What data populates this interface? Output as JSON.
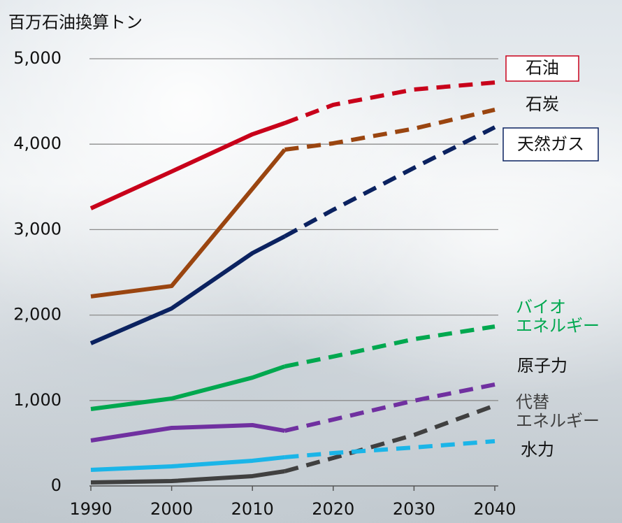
{
  "chart_data": {
    "type": "line",
    "y_label": "百万石油換算トン",
    "x": [
      1990,
      2000,
      2010,
      2014,
      2020,
      2030,
      2040
    ],
    "xlim": [
      1990,
      2040
    ],
    "xticks": [
      1990,
      2000,
      2010,
      2020,
      2030,
      2040
    ],
    "ylim": [
      0,
      5000
    ],
    "yticks": [
      0,
      {
        "value": 1000,
        "label": "1,000"
      },
      {
        "value": 2000,
        "label": "2,000"
      },
      {
        "value": 3000,
        "label": "3,000"
      },
      {
        "value": 4000,
        "label": "4,000"
      },
      {
        "value": 5000,
        "label": "5,000"
      }
    ],
    "grid": true,
    "solid_until": 2014,
    "series": [
      {
        "name": "石油",
        "color": "#c8001a",
        "boxed": true,
        "values": [
          3249,
          3680,
          4116,
          4247,
          4460,
          4640,
          4722
        ]
      },
      {
        "name": "石炭",
        "color": "#9a4510",
        "values": [
          2218,
          2340,
          3478,
          3936,
          4010,
          4182,
          4403
        ]
      },
      {
        "name": "天然ガス",
        "color": "#0b2260",
        "boxed": true,
        "values": [
          1669,
          2078,
          2725,
          2921,
          3232,
          3723,
          4198
        ]
      },
      {
        "name": [
          "バイオ",
          "エネルギー"
        ],
        "color": "#00a84f",
        "values": [
          900,
          1023,
          1268,
          1399,
          1514,
          1718,
          1866
        ]
      },
      {
        "name": "原子力",
        "color": "#7030a0",
        "values": [
          532,
          679,
          712,
          646,
          777,
          998,
          1187
        ]
      },
      {
        "name": [
          "代替",
          "エネルギー"
        ],
        "color": "#404040",
        "values": [
          41,
          57,
          115,
          172,
          327,
          597,
          941
        ]
      },
      {
        "name": "水力",
        "color": "#1bb5e8",
        "values": [
          188,
          229,
          295,
          336,
          385,
          450,
          524
        ]
      }
    ]
  }
}
